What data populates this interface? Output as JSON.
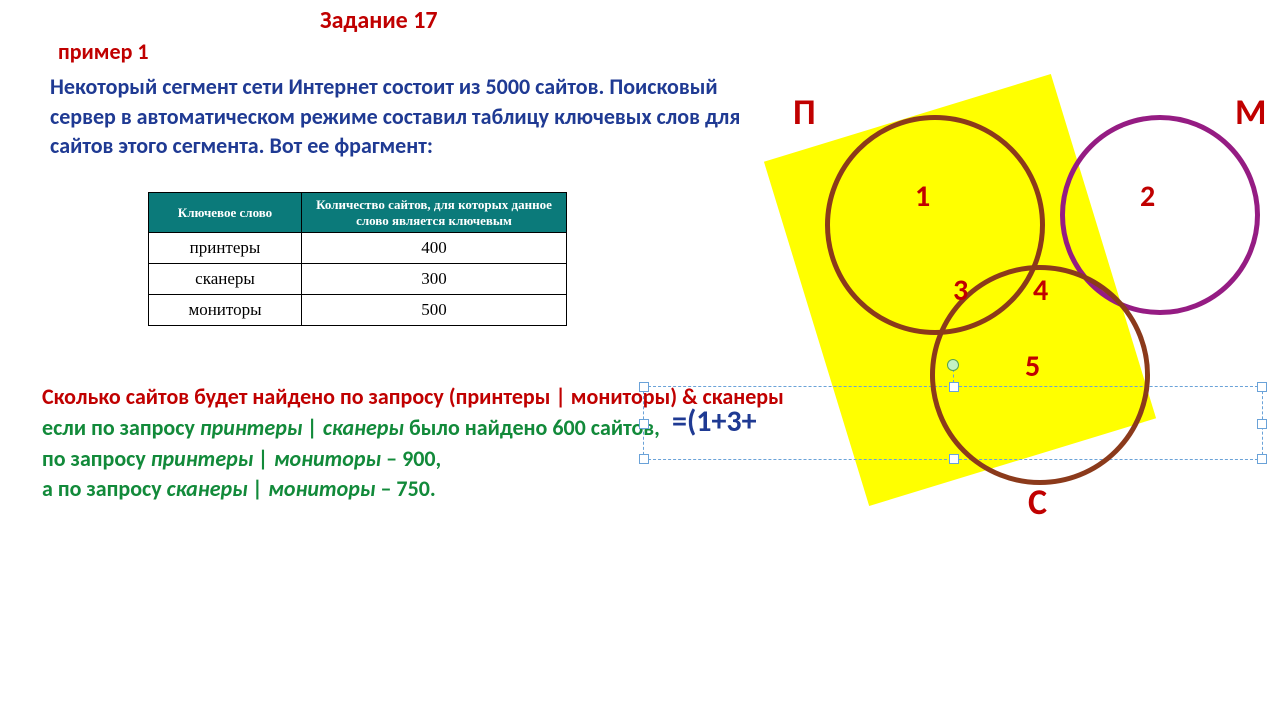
{
  "title": "Задание 17",
  "example": "пример 1",
  "problem": "Некоторый сегмент сети Интернет состоит из 5000 сайтов. Поисковый сервер в автоматическом режиме составил таблицу ключевых слов для сайтов этого сегмента. Вот ее фрагмент:",
  "table": {
    "header_word": "Ключевое слово",
    "header_count": "Количество сайтов, для которых данное слово является ключевым",
    "rows": [
      {
        "word": "принтеры",
        "count": "400"
      },
      {
        "word": "сканеры",
        "count": "300"
      },
      {
        "word": "мониторы",
        "count": "500"
      }
    ]
  },
  "question": {
    "line1": "Сколько сайтов будет найдено по запросу (принтеры | мониторы) & сканеры",
    "line2_pre": "если по запросу ",
    "line2_em": "принтеры | сканеры",
    "line2_post": " было найдено 600 сайтов,",
    "line3_pre": "по запросу ",
    "line3_em": "принтеры | мониторы",
    "line3_post": " – 900,",
    "line4_pre": "а по запросу ",
    "line4_em": "сканеры | мониторы",
    "line4_post": " – 750."
  },
  "formula": "=(1+3+",
  "venn": {
    "labels": {
      "P": "П",
      "M": "М",
      "C": "С"
    },
    "regions": {
      "r1": "1",
      "r2": "2",
      "r3": "3",
      "r4": "4",
      "r5": "5"
    },
    "colors": {
      "yellow": "#ffff00",
      "brown": "#8b3a1b",
      "purple": "#951c83",
      "red": "#c00000"
    }
  }
}
